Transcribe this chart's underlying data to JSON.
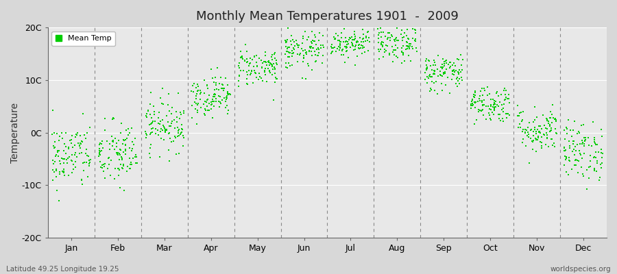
{
  "title": "Monthly Mean Temperatures 1901  -  2009",
  "ylabel": "Temperature",
  "xlabel_labels": [
    "Jan",
    "Feb",
    "Mar",
    "Apr",
    "May",
    "Jun",
    "Jul",
    "Aug",
    "Sep",
    "Oct",
    "Nov",
    "Dec"
  ],
  "ylim": [
    -20,
    20
  ],
  "yticks": [
    -20,
    -10,
    0,
    10,
    20
  ],
  "ytick_labels": [
    "-20C",
    "-10C",
    "0C",
    "10C",
    "20C"
  ],
  "dot_color": "#00cc00",
  "bg_color": "#d8d8d8",
  "plot_bg_color": "#e8e8e8",
  "grid_color": "#888888",
  "hgrid_color": "#ffffff",
  "legend_label": "Mean Temp",
  "footer_left": "Latitude 49.25 Longitude 19.25",
  "footer_right": "worldspecies.org",
  "n_years": 109,
  "seed": 42,
  "monthly_means": [
    -4.5,
    -4.2,
    1.5,
    7.0,
    12.5,
    15.5,
    17.2,
    16.8,
    11.5,
    5.5,
    0.5,
    -3.5
  ],
  "monthly_stds": [
    3.2,
    3.2,
    2.5,
    2.0,
    1.8,
    1.8,
    1.5,
    1.8,
    1.8,
    1.8,
    2.2,
    2.8
  ]
}
